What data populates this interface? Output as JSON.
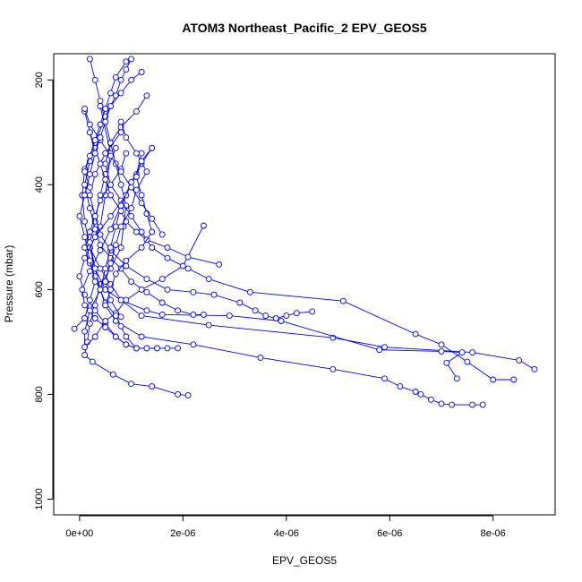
{
  "chart_data": {
    "type": "line",
    "title": "ATOM3 Northeast_Pacific_2 EPV_GEOS5",
    "xlabel": "EPV_GEOS5",
    "ylabel": "Pressure (mbar)",
    "xlim": [
      -5e-07,
      9.2e-06
    ],
    "ylim": [
      1030,
      150
    ],
    "y_reversed": true,
    "x_ticks": [
      0,
      2e-06,
      4e-06,
      6e-06,
      8e-06
    ],
    "x_tick_labels": [
      "0e+00",
      "2e-06",
      "4e-06",
      "6e-06",
      "8e-06"
    ],
    "y_ticks": [
      200,
      400,
      600,
      800,
      1000
    ],
    "y_tick_labels": [
      "200",
      "400",
      "600",
      "800",
      "1000"
    ],
    "grid": false,
    "legend": "none",
    "color": "#0000ff",
    "marker": "open-circle",
    "series": [
      {
        "x": [
          2.1e-06,
          1.9e-06,
          1.4e-06,
          1e-06,
          6.5e-07,
          2.5e-07,
          1e-07,
          1.5e-07,
          2e-07,
          3e-07,
          4e-07,
          6e-07,
          8e-07,
          8.5e-07,
          9e-07,
          8e-07,
          7e-07,
          6e-07,
          5e-07,
          4e-07,
          3e-07,
          2e-07
        ],
        "y": [
          802,
          800,
          785,
          780,
          762,
          738,
          725,
          700,
          665,
          630,
          590,
          560,
          520,
          480,
          440,
          400,
          360,
          320,
          280,
          240,
          200,
          160
        ]
      },
      {
        "x": [
          7.8e-06,
          7.6e-06,
          7.2e-06,
          7e-06,
          6.8e-06,
          6.6e-06,
          6.5e-06,
          6.2e-06,
          5.9e-06,
          4.9e-06,
          3.5e-06,
          2.2e-06,
          1.2e-06,
          7e-07,
          5e-07,
          4e-07,
          3e-07,
          2e-07,
          4e-07,
          5e-07,
          6e-07,
          4e-07
        ],
        "y": [
          820,
          820,
          820,
          818,
          810,
          800,
          795,
          785,
          770,
          752,
          730,
          705,
          690,
          660,
          630,
          600,
          560,
          520,
          480,
          420,
          340,
          250
        ]
      },
      {
        "x": [
          8.8e-06,
          8.5e-06,
          7.6e-06,
          5.9e-06,
          4.9e-06,
          2.5e-06,
          1.2e-06,
          8e-07,
          6e-07,
          4e-07,
          2e-07,
          1e-07,
          5e-08,
          1e-07,
          3e-07,
          5e-07,
          7e-07,
          8e-07,
          9e-07,
          1e-06
        ],
        "y": [
          752,
          735,
          720,
          710,
          692,
          668,
          650,
          620,
          590,
          560,
          520,
          470,
          420,
          370,
          320,
          270,
          230,
          200,
          180,
          160
        ]
      },
      {
        "x": [
          8.4e-06,
          8e-06,
          7.5e-06,
          7e-06,
          6.5e-06,
          5.1e-06,
          3.3e-06,
          2.5e-06,
          2.1e-06,
          1.7e-06,
          1.4e-06,
          1.2e-06,
          1e-06,
          8e-07,
          6e-07,
          5e-07,
          6e-07,
          8e-07,
          1.1e-06,
          1.3e-06
        ],
        "y": [
          772,
          772,
          738,
          705,
          685,
          622,
          605,
          580,
          560,
          540,
          520,
          490,
          460,
          430,
          400,
          360,
          320,
          290,
          260,
          230
        ]
      },
      {
        "x": [
          7.3e-06,
          7.1e-06,
          7.4e-06,
          7e-06,
          5.8e-06,
          3.9e-06,
          2.9e-06,
          1.6e-06,
          1.3e-06,
          8e-07,
          5e-07,
          3e-07,
          2e-07,
          3e-07,
          4e-07,
          5e-07,
          7e-07
        ],
        "y": [
          770,
          740,
          720,
          718,
          715,
          660,
          650,
          648,
          640,
          620,
          600,
          560,
          510,
          470,
          420,
          380,
          330
        ]
      },
      {
        "x": [
          4.5e-06,
          4.2e-06,
          4e-06,
          3.8e-06,
          3.6e-06,
          3.4e-06,
          3.1e-06,
          2.6e-06,
          2.2e-06,
          1.7e-06,
          1.3e-06,
          9e-07,
          6e-07,
          4e-07,
          3e-07,
          2e-07,
          3e-07,
          5e-07,
          8e-07
        ],
        "y": [
          642,
          645,
          650,
          655,
          650,
          640,
          625,
          610,
          605,
          600,
          580,
          555,
          525,
          495,
          460,
          420,
          380,
          340,
          300
        ]
      },
      {
        "x": [
          2.4e-06,
          2.2e-06,
          1.9e-06,
          1.6e-06,
          1.3e-06,
          1e-06,
          8e-07,
          6e-07,
          4e-07,
          3e-07,
          2e-07,
          1e-07,
          2e-07,
          4e-07
        ],
        "y": [
          648,
          648,
          640,
          625,
          605,
          585,
          560,
          540,
          515,
          485,
          445,
          400,
          355,
          310
        ]
      },
      {
        "x": [
          1.9e-06,
          1.7e-06,
          1.5e-06,
          1.3e-06,
          1.1e-06,
          9e-07,
          7e-07,
          5e-07,
          3e-07,
          1e-07,
          0,
          1e-07,
          3e-07,
          6e-07,
          9e-07,
          1.1e-06,
          1.2e-06
        ],
        "y": [
          712,
          712,
          712,
          712,
          712,
          705,
          690,
          665,
          640,
          610,
          575,
          540,
          500,
          460,
          420,
          380,
          340
        ]
      },
      {
        "x": [
          1.5e-06,
          1.3e-06,
          1.1e-06,
          9e-07,
          7e-07,
          5e-07,
          3e-07,
          1e-07,
          5e-08,
          2e-07,
          4e-07,
          6e-07,
          8e-07,
          1e-06,
          1.2e-06,
          1.4e-06
        ],
        "y": [
          712,
          712,
          712,
          705,
          690,
          672,
          655,
          630,
          600,
          565,
          525,
          485,
          440,
          395,
          360,
          330
        ]
      },
      {
        "x": [
          2.4e-06,
          2e-06,
          1.6e-06,
          1.2e-06,
          9e-07,
          7e-07,
          5e-07,
          3e-07,
          1e-07,
          1e-07,
          2e-07,
          4e-07,
          5e-07,
          6e-07,
          7e-07,
          8e-07
        ],
        "y": [
          478,
          555,
          580,
          600,
          620,
          645,
          660,
          690,
          710,
          680,
          640,
          600,
          560,
          520,
          480,
          440
        ]
      },
      {
        "x": [
          2.7e-06,
          2.1e-06,
          1.7e-06,
          1.3e-06,
          1.1e-06,
          9e-07,
          8e-07,
          6e-07,
          5e-07,
          4e-07,
          3e-07,
          2e-07
        ],
        "y": [
          552,
          538,
          520,
          505,
          490,
          470,
          450,
          420,
          390,
          360,
          330,
          300
        ]
      },
      {
        "x": [
          1.1e-06,
          9e-07,
          8e-07,
          7e-07,
          5e-07,
          4e-07,
          3e-07,
          2e-07,
          1e-07,
          2e-07,
          3e-07,
          4e-07,
          6e-07,
          8e-07,
          9e-07
        ],
        "y": [
          712,
          690,
          670,
          650,
          625,
          600,
          575,
          550,
          520,
          490,
          460,
          430,
          400,
          370,
          340
        ]
      },
      {
        "x": [
          -1e-07,
          1e-07,
          2e-07,
          3e-07,
          2e-07,
          1e-07,
          0,
          1e-07,
          2e-07,
          3e-07,
          2e-07,
          1e-07
        ],
        "y": [
          675,
          655,
          620,
          585,
          545,
          500,
          460,
          420,
          380,
          340,
          300,
          260
        ]
      },
      {
        "x": [
          8e-07,
          6e-07,
          5e-07,
          6e-07,
          7e-07,
          8e-07,
          1e-06,
          1.1e-06,
          1.3e-06,
          1.1e-06,
          9e-07,
          8e-07
        ],
        "y": [
          652,
          620,
          585,
          550,
          515,
          480,
          445,
          410,
          375,
          340,
          310,
          280
        ]
      },
      {
        "x": [
          1.4e-06,
          1.2e-06,
          1.1e-06,
          1.2e-06,
          1.3e-06,
          1.4e-06,
          1.2e-06,
          9e-07,
          7e-07,
          6e-07,
          5e-07
        ],
        "y": [
          330,
          355,
          385,
          420,
          455,
          490,
          520,
          545,
          570,
          600,
          630
        ]
      },
      {
        "x": [
          1e-07,
          2e-07,
          4e-07,
          6e-07,
          8e-07,
          1e-06,
          1.2e-06,
          1.4e-06,
          1.6e-06
        ],
        "y": [
          255,
          285,
          315,
          345,
          375,
          405,
          435,
          465,
          495
        ]
      },
      {
        "x": [
          9e-07,
          7e-07,
          6e-07,
          5e-07,
          4e-07,
          3e-07,
          2e-07,
          1e-07,
          2e-07
        ],
        "y": [
          165,
          195,
          225,
          255,
          285,
          315,
          345,
          375,
          405
        ]
      },
      {
        "x": [
          1.2e-06,
          1e-06,
          8e-07,
          6e-07,
          5e-07,
          4e-07,
          3e-07
        ],
        "y": [
          185,
          200,
          225,
          250,
          280,
          310,
          340
        ]
      }
    ]
  }
}
